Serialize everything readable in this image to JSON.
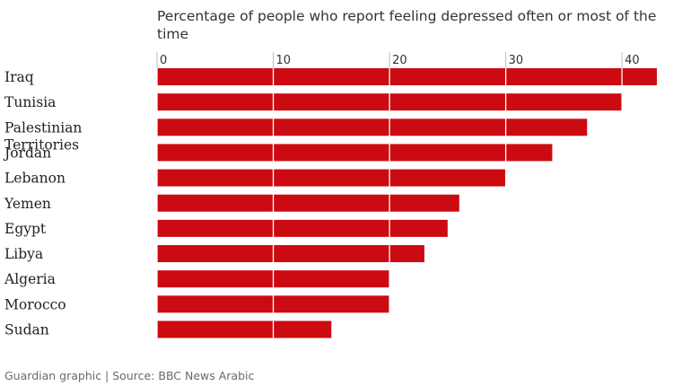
{
  "chart_data": {
    "type": "bar",
    "orientation": "horizontal",
    "title_lines": [
      "Percentage of people who report feeling depressed often or most of the",
      "time"
    ],
    "categories": [
      [
        "Iraq"
      ],
      [
        "Tunisia"
      ],
      [
        "Palestinian",
        "Territories"
      ],
      [
        "Jordan"
      ],
      [
        "Lebanon"
      ],
      [
        "Yemen"
      ],
      [
        "Egypt"
      ],
      [
        "Libya"
      ],
      [
        "Algeria"
      ],
      [
        "Morocco"
      ],
      [
        "Sudan"
      ]
    ],
    "values": [
      43,
      40,
      37,
      34,
      30,
      26,
      25,
      23,
      20,
      20,
      15
    ],
    "xlim": [
      0,
      43
    ],
    "xticks": [
      0,
      10,
      20,
      30,
      40
    ],
    "grid": true,
    "bar_color": "#cc0a11",
    "grid_color": "#ffffff",
    "source": "Guardian graphic | Source: BBC News Arabic"
  }
}
